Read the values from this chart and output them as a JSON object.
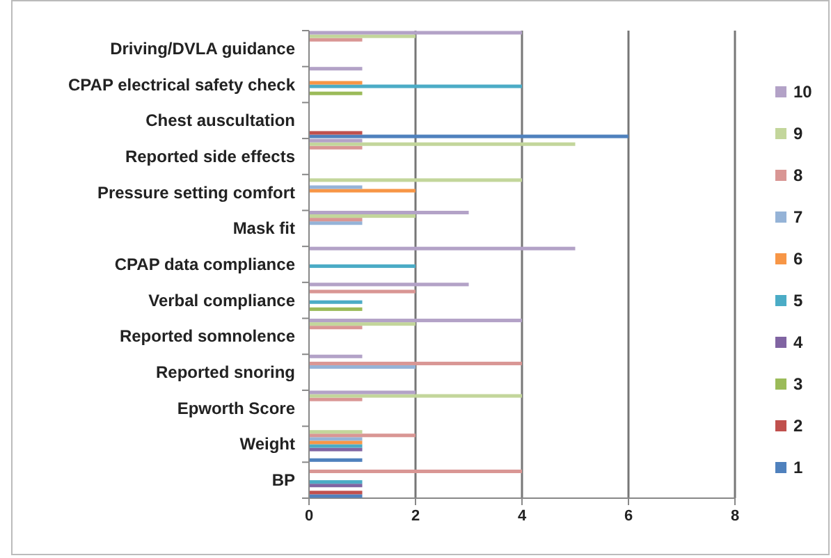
{
  "chart_data": {
    "type": "bar",
    "orientation": "horizontal",
    "categories": [
      "Driving/DVLA guidance",
      "CPAP electrical safety check",
      "Chest auscultation",
      "Reported side effects",
      "Pressure setting comfort",
      "Mask fit",
      "CPAP data compliance",
      "Verbal compliance",
      "Reported somnolence",
      "Reported snoring",
      "Epworth Score",
      "Weight",
      "BP"
    ],
    "series": [
      {
        "name": "1",
        "color": "#4f81bd",
        "values": [
          0,
          0,
          6,
          0,
          0,
          0,
          0,
          0,
          0,
          0,
          0,
          1,
          1
        ]
      },
      {
        "name": "2",
        "color": "#c0504d",
        "values": [
          0,
          0,
          1,
          0,
          0,
          0,
          0,
          0,
          0,
          0,
          0,
          0,
          1
        ]
      },
      {
        "name": "3",
        "color": "#9bbb59",
        "values": [
          0,
          1,
          0,
          0,
          0,
          0,
          0,
          1,
          0,
          0,
          0,
          0,
          0
        ]
      },
      {
        "name": "4",
        "color": "#8064a2",
        "values": [
          0,
          0,
          0,
          0,
          0,
          0,
          0,
          0,
          0,
          0,
          0,
          1,
          1
        ]
      },
      {
        "name": "5",
        "color": "#4bacc6",
        "values": [
          0,
          4,
          0,
          0,
          0,
          0,
          2,
          1,
          0,
          0,
          0,
          1,
          1
        ]
      },
      {
        "name": "6",
        "color": "#f79646",
        "values": [
          0,
          1,
          0,
          0,
          2,
          0,
          0,
          0,
          0,
          0,
          0,
          1,
          0
        ]
      },
      {
        "name": "7",
        "color": "#95b3d7",
        "values": [
          0,
          0,
          0,
          0,
          1,
          1,
          0,
          0,
          0,
          2,
          0,
          1,
          0
        ]
      },
      {
        "name": "8",
        "color": "#d99694",
        "values": [
          1,
          0,
          0,
          1,
          0,
          1,
          0,
          2,
          1,
          4,
          1,
          2,
          4
        ]
      },
      {
        "name": "9",
        "color": "#c3d69b",
        "values": [
          2,
          0,
          0,
          5,
          4,
          2,
          0,
          0,
          2,
          0,
          4,
          1,
          0
        ]
      },
      {
        "name": "10",
        "color": "#b3a2c7",
        "values": [
          4,
          1,
          0,
          1,
          0,
          3,
          5,
          3,
          4,
          1,
          2,
          0,
          0
        ]
      }
    ],
    "xlim": [
      0,
      8
    ],
    "xticks": [
      0,
      2,
      4,
      6,
      8
    ],
    "grid": "x",
    "legend": "right"
  }
}
